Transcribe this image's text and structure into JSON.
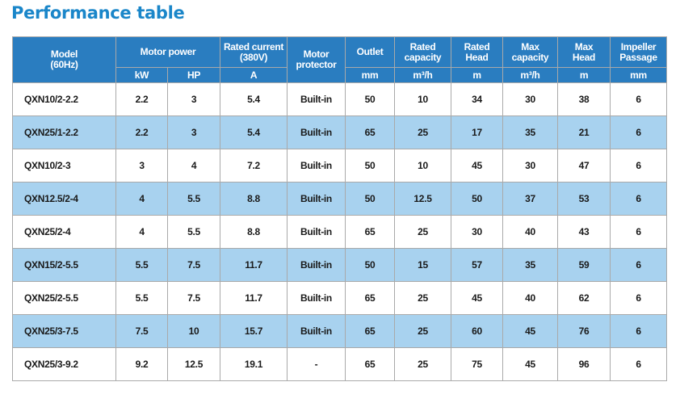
{
  "title": "Performance table",
  "headers": {
    "model": [
      "Model",
      "(60Hz)"
    ],
    "motor_power": "Motor power",
    "rated_current": [
      "Rated current",
      "(380V)"
    ],
    "motor_protector": [
      "Motor",
      "protector"
    ],
    "outlet": "Outlet",
    "rated_capacity": [
      "Rated",
      "capacity"
    ],
    "rated_head": [
      "Rated",
      "Head"
    ],
    "max_capacity": [
      "Max",
      "capacity"
    ],
    "max_head": [
      "Max",
      "Head"
    ],
    "impeller_passage": [
      "Impeller",
      "Passage"
    ]
  },
  "units": [
    "kW",
    "HP",
    "A",
    "mm",
    "m³/h",
    "m",
    "m³/h",
    "m",
    "mm"
  ],
  "rows": [
    [
      "QXN10/2-2.2",
      "2.2",
      "3",
      "5.4",
      "Built-in",
      "50",
      "10",
      "34",
      "30",
      "38",
      "6"
    ],
    [
      "QXN25/1-2.2",
      "2.2",
      "3",
      "5.4",
      "Built-in",
      "65",
      "25",
      "17",
      "35",
      "21",
      "6"
    ],
    [
      "QXN10/2-3",
      "3",
      "4",
      "7.2",
      "Built-in",
      "50",
      "10",
      "45",
      "30",
      "47",
      "6"
    ],
    [
      "QXN12.5/2-4",
      "4",
      "5.5",
      "8.8",
      "Built-in",
      "50",
      "12.5",
      "50",
      "37",
      "53",
      "6"
    ],
    [
      "QXN25/2-4",
      "4",
      "5.5",
      "8.8",
      "Built-in",
      "65",
      "25",
      "30",
      "40",
      "43",
      "6"
    ],
    [
      "QXN15/2-5.5",
      "5.5",
      "7.5",
      "11.7",
      "Built-in",
      "50",
      "15",
      "57",
      "35",
      "59",
      "6"
    ],
    [
      "QXN25/2-5.5",
      "5.5",
      "7.5",
      "11.7",
      "Built-in",
      "65",
      "25",
      "45",
      "40",
      "62",
      "6"
    ],
    [
      "QXN25/3-7.5",
      "7.5",
      "10",
      "15.7",
      "Built-in",
      "65",
      "25",
      "60",
      "45",
      "76",
      "6"
    ],
    [
      "QXN25/3-9.2",
      "9.2",
      "12.5",
      "19.1",
      "-",
      "65",
      "25",
      "75",
      "45",
      "96",
      "6"
    ]
  ],
  "colors": {
    "title": "#1a86c9",
    "header_bg": "#2a7dc0",
    "alt_row_bg": "#a8d2ef",
    "border": "#a9a9a9"
  }
}
